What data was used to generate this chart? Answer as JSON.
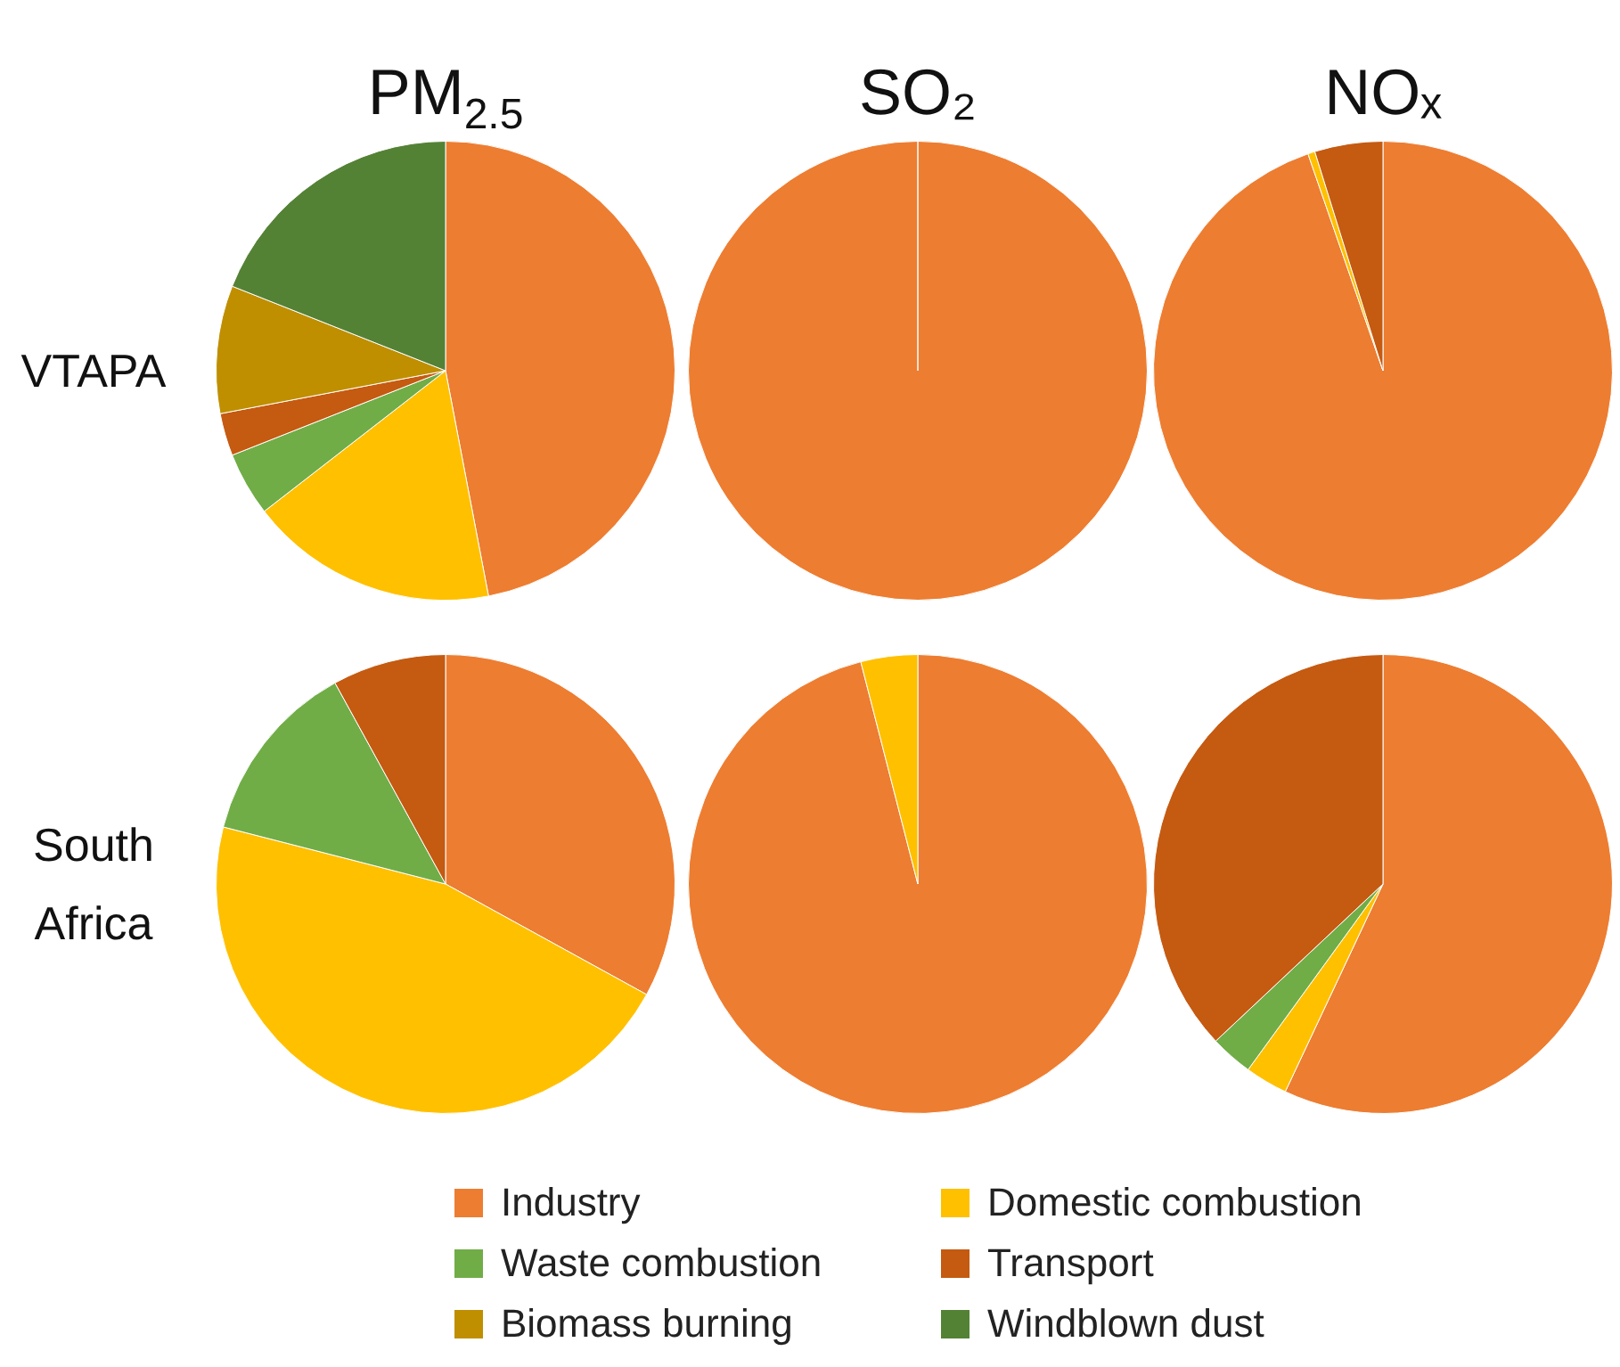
{
  "chart_data": [
    {
      "type": "pie",
      "title": "PM$_{2.5}$",
      "ylabel": "VTAPA",
      "legend": "bottom",
      "categories": [
        "Industry",
        "Domestic combustion",
        "Waste combustion",
        "Transport",
        "Biomass burning",
        "Windblown dust"
      ],
      "values": [
        47,
        17.5,
        4.5,
        3,
        9,
        19
      ],
      "colors": [
        "#ed7d31",
        "#ffc000",
        "#70ad47",
        "#c55a11",
        "#bf8f00",
        "#548235"
      ]
    },
    {
      "type": "pie",
      "title": "SO₂",
      "categories": [
        null
      ],
      "values": [
        100
      ],
      "colors": [
        "#ed7d31"
      ]
    },
    {
      "type": "pie",
      "title": "NOₓ",
      "categories": [
        null,
        null,
        null
      ],
      "values": [
        94.7,
        0.5,
        4.8
      ],
      "colors": [
        "#ed7d31",
        "#ffc000",
        "#c55a11"
      ]
    },
    {
      "type": "pie",
      "ylabel": "South Africa",
      "categories": [
        null,
        null,
        null,
        null
      ],
      "values": [
        33,
        46,
        13,
        8
      ],
      "colors": [
        "#ed7d31",
        "#ffc000",
        "#70ad47",
        "#c55a11"
      ]
    },
    {
      "type": "pie",
      "categories": [
        null,
        null
      ],
      "values": [
        96,
        4
      ],
      "colors": [
        "#ed7d31",
        "#ffc000"
      ]
    },
    {
      "type": "pie",
      "categories": [
        null,
        null,
        null,
        null
      ],
      "values": [
        57,
        3,
        3,
        37
      ],
      "colors": [
        "#ed7d31",
        "#ffc000",
        "#70ad47",
        "#c55a11"
      ]
    }
  ]
}
